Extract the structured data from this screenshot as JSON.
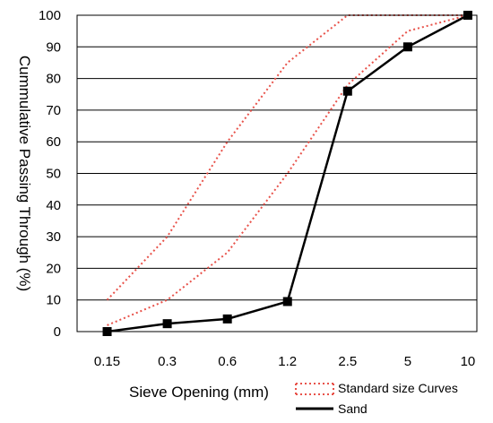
{
  "chart_data": {
    "type": "line",
    "categories": [
      "0.15",
      "0.3",
      "0.6",
      "1.2",
      "2.5",
      "5",
      "10"
    ],
    "xlabel": "Sieve Opening (mm)",
    "ylabel": "Cummulative Passing Through (%)",
    "ylim": [
      0,
      100
    ],
    "yticks": [
      "0",
      "10",
      "20",
      "30",
      "40",
      "50",
      "60",
      "70",
      "80",
      "90",
      "100"
    ],
    "grid": "horizontal",
    "legend_position": "bottom-right",
    "series": [
      {
        "name": "Standard size Curves",
        "style": "dotted",
        "color": "#e8524a",
        "values": [
          10,
          30,
          60,
          85,
          100,
          100,
          100
        ]
      },
      {
        "name": "",
        "style": "dotted",
        "color": "#e8524a",
        "values": [
          2,
          10,
          25,
          50,
          78,
          95,
          100
        ]
      },
      {
        "name": "Sand",
        "style": "solid-square-markers",
        "color": "#000000",
        "values": [
          0,
          2.5,
          4,
          9.5,
          76,
          90,
          100
        ]
      }
    ]
  }
}
